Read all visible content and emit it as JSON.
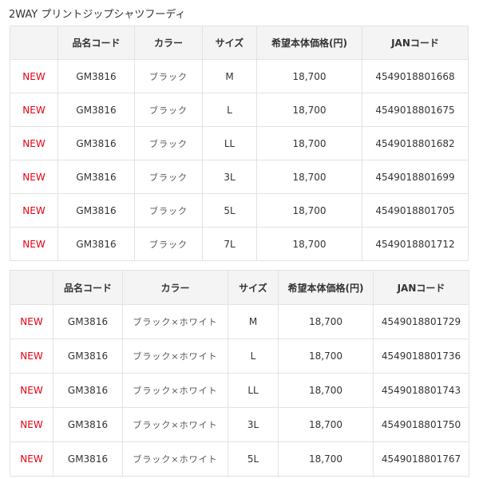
{
  "title": "2WAY プリントジップシャツフーディ",
  "headers": [
    "",
    "品名コード",
    "カラー",
    "サイズ",
    "希望本体価格(円)",
    "JANコード"
  ],
  "tables": [
    {
      "rows": [
        {
          "badge": "NEW",
          "code": "GM3816",
          "color": "ブラック",
          "size": "M",
          "price": "18,700",
          "jan": "4549018801668"
        },
        {
          "badge": "NEW",
          "code": "GM3816",
          "color": "ブラック",
          "size": "L",
          "price": "18,700",
          "jan": "4549018801675"
        },
        {
          "badge": "NEW",
          "code": "GM3816",
          "color": "ブラック",
          "size": "LL",
          "price": "18,700",
          "jan": "4549018801682"
        },
        {
          "badge": "NEW",
          "code": "GM3816",
          "color": "ブラック",
          "size": "3L",
          "price": "18,700",
          "jan": "4549018801699"
        },
        {
          "badge": "NEW",
          "code": "GM3816",
          "color": "ブラック",
          "size": "5L",
          "price": "18,700",
          "jan": "4549018801705"
        },
        {
          "badge": "NEW",
          "code": "GM3816",
          "color": "ブラック",
          "size": "7L",
          "price": "18,700",
          "jan": "4549018801712"
        }
      ]
    },
    {
      "rows": [
        {
          "badge": "NEW",
          "code": "GM3816",
          "color": "ブラック×ホワイト",
          "size": "M",
          "price": "18,700",
          "jan": "4549018801729"
        },
        {
          "badge": "NEW",
          "code": "GM3816",
          "color": "ブラック×ホワイト",
          "size": "L",
          "price": "18,700",
          "jan": "4549018801736"
        },
        {
          "badge": "NEW",
          "code": "GM3816",
          "color": "ブラック×ホワイト",
          "size": "LL",
          "price": "18,700",
          "jan": "4549018801743"
        },
        {
          "badge": "NEW",
          "code": "GM3816",
          "color": "ブラック×ホワイト",
          "size": "3L",
          "price": "18,700",
          "jan": "4549018801750"
        },
        {
          "badge": "NEW",
          "code": "GM3816",
          "color": "ブラック×ホワイト",
          "size": "5L",
          "price": "18,700",
          "jan": "4549018801767"
        }
      ]
    }
  ],
  "colors": {
    "new": "#e60012",
    "header_bg": "#f4f4f4",
    "border": "#e2e2e2"
  }
}
